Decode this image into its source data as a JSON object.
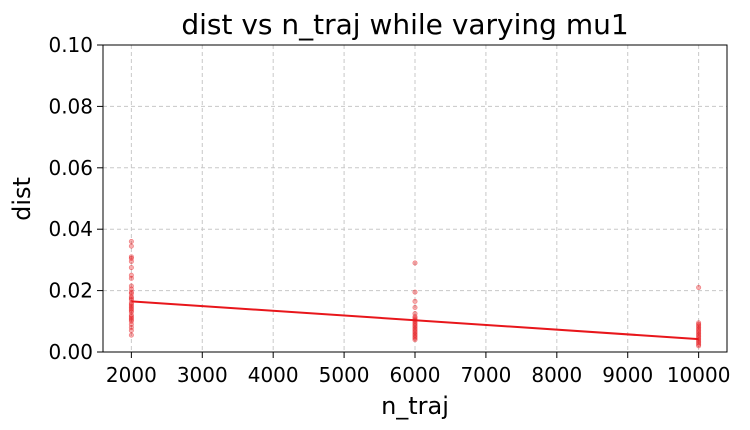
{
  "chart_data": {
    "type": "scatter",
    "title": "dist vs n_traj while varying mu1",
    "xlabel": "n_traj",
    "ylabel": "dist",
    "xlim": [
      1600,
      10400
    ],
    "ylim": [
      0,
      0.1
    ],
    "xticks": [
      2000,
      3000,
      4000,
      5000,
      6000,
      7000,
      8000,
      9000,
      10000
    ],
    "xtick_labels": [
      "2000",
      "3000",
      "4000",
      "5000",
      "6000",
      "7000",
      "8000",
      "9000",
      "10000"
    ],
    "yticks": [
      0,
      0.02,
      0.04,
      0.06,
      0.08,
      0.1
    ],
    "ytick_labels": [
      "0.00",
      "0.02",
      "0.04",
      "0.06",
      "0.08",
      "0.10"
    ],
    "grid": true,
    "grid_style": "dashed",
    "color": "#e8161b",
    "points": [
      {
        "x": 2000,
        "y": 0.036
      },
      {
        "x": 2000,
        "y": 0.0345
      },
      {
        "x": 2000,
        "y": 0.031
      },
      {
        "x": 2000,
        "y": 0.0305
      },
      {
        "x": 2000,
        "y": 0.0295
      },
      {
        "x": 2000,
        "y": 0.0275
      },
      {
        "x": 2000,
        "y": 0.025
      },
      {
        "x": 2000,
        "y": 0.024
      },
      {
        "x": 2000,
        "y": 0.0215
      },
      {
        "x": 2000,
        "y": 0.0205
      },
      {
        "x": 2000,
        "y": 0.0195
      },
      {
        "x": 2000,
        "y": 0.019
      },
      {
        "x": 2000,
        "y": 0.018
      },
      {
        "x": 2000,
        "y": 0.0175
      },
      {
        "x": 2000,
        "y": 0.017
      },
      {
        "x": 2000,
        "y": 0.016
      },
      {
        "x": 2000,
        "y": 0.0155
      },
      {
        "x": 2000,
        "y": 0.015
      },
      {
        "x": 2000,
        "y": 0.0145
      },
      {
        "x": 2000,
        "y": 0.014
      },
      {
        "x": 2000,
        "y": 0.0135
      },
      {
        "x": 2000,
        "y": 0.013
      },
      {
        "x": 2000,
        "y": 0.012
      },
      {
        "x": 2000,
        "y": 0.0115
      },
      {
        "x": 2000,
        "y": 0.011
      },
      {
        "x": 2000,
        "y": 0.0105
      },
      {
        "x": 2000,
        "y": 0.01
      },
      {
        "x": 2000,
        "y": 0.009
      },
      {
        "x": 2000,
        "y": 0.008
      },
      {
        "x": 2000,
        "y": 0.007
      },
      {
        "x": 2000,
        "y": 0.0055
      },
      {
        "x": 6000,
        "y": 0.029
      },
      {
        "x": 6000,
        "y": 0.0195
      },
      {
        "x": 6000,
        "y": 0.0165
      },
      {
        "x": 6000,
        "y": 0.0145
      },
      {
        "x": 6000,
        "y": 0.0125
      },
      {
        "x": 6000,
        "y": 0.0115
      },
      {
        "x": 6000,
        "y": 0.011
      },
      {
        "x": 6000,
        "y": 0.0105
      },
      {
        "x": 6000,
        "y": 0.01
      },
      {
        "x": 6000,
        "y": 0.0095
      },
      {
        "x": 6000,
        "y": 0.009
      },
      {
        "x": 6000,
        "y": 0.0085
      },
      {
        "x": 6000,
        "y": 0.008
      },
      {
        "x": 6000,
        "y": 0.0075
      },
      {
        "x": 6000,
        "y": 0.007
      },
      {
        "x": 6000,
        "y": 0.0065
      },
      {
        "x": 6000,
        "y": 0.006
      },
      {
        "x": 6000,
        "y": 0.0055
      },
      {
        "x": 6000,
        "y": 0.005
      },
      {
        "x": 6000,
        "y": 0.0045
      },
      {
        "x": 6000,
        "y": 0.004
      },
      {
        "x": 10000,
        "y": 0.021
      },
      {
        "x": 10000,
        "y": 0.0095
      },
      {
        "x": 10000,
        "y": 0.009
      },
      {
        "x": 10000,
        "y": 0.0085
      },
      {
        "x": 10000,
        "y": 0.008
      },
      {
        "x": 10000,
        "y": 0.0075
      },
      {
        "x": 10000,
        "y": 0.007
      },
      {
        "x": 10000,
        "y": 0.0065
      },
      {
        "x": 10000,
        "y": 0.006
      },
      {
        "x": 10000,
        "y": 0.0055
      },
      {
        "x": 10000,
        "y": 0.005
      },
      {
        "x": 10000,
        "y": 0.0045
      },
      {
        "x": 10000,
        "y": 0.004
      },
      {
        "x": 10000,
        "y": 0.0035
      },
      {
        "x": 10000,
        "y": 0.003
      },
      {
        "x": 10000,
        "y": 0.0025
      },
      {
        "x": 10000,
        "y": 0.002
      }
    ],
    "trend_line": {
      "x": [
        2000,
        10000
      ],
      "y": [
        0.0165,
        0.0042
      ]
    }
  }
}
